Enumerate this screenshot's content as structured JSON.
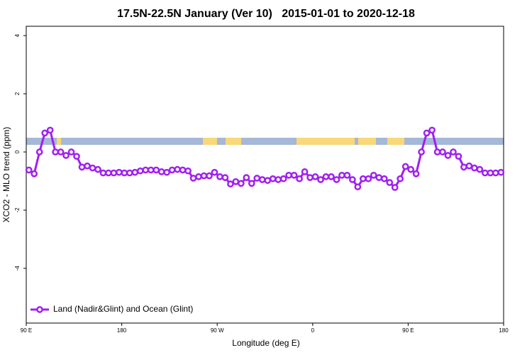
{
  "chart_data": {
    "type": "line",
    "title": "17.5N-22.5N January (Ver 10)   2015-01-01 to 2020-12-18",
    "x_label": "Longitude (deg E)",
    "y_label": "XCO2 - MLO trend (ppm)",
    "xlim": [
      90,
      540
    ],
    "ylim": [
      -5.88,
      4.32
    ],
    "xticks": [
      {
        "value": 90,
        "label": "90 E"
      },
      {
        "value": 180,
        "label": "180"
      },
      {
        "value": 270,
        "label": "90 W"
      },
      {
        "value": 360,
        "label": "0"
      },
      {
        "value": 450,
        "label": "90 E"
      },
      {
        "value": 540,
        "label": "180"
      }
    ],
    "yticks": [
      4,
      2,
      0,
      -2,
      -4
    ],
    "legend": "bottom-left",
    "x": [
      92.5,
      97.5,
      102.5,
      107.5,
      112.5,
      117.5,
      122.5,
      127.5,
      132.5,
      137.5,
      142.5,
      147.5,
      152.5,
      157.5,
      162.5,
      167.5,
      172.5,
      177.5,
      182.5,
      187.5,
      192.5,
      197.5,
      202.5,
      207.5,
      212.5,
      217.5,
      222.5,
      227.5,
      232.5,
      237.5,
      242.5,
      247.5,
      252.5,
      257.5,
      262.5,
      267.5,
      272.5,
      277.5,
      282.5,
      287.5,
      292.5,
      297.5,
      302.5,
      307.5,
      312.5,
      317.5,
      322.5,
      327.5,
      332.5,
      337.5,
      342.5,
      347.5,
      352.5,
      357.5,
      362.5,
      367.5,
      372.5,
      377.5,
      382.5,
      387.5,
      392.5,
      397.5,
      402.5,
      407.5,
      412.5,
      417.5,
      422.5,
      427.5,
      432.5,
      437.5,
      442.5,
      447.5,
      452.5,
      457.5,
      462.5,
      467.5,
      472.5,
      477.5,
      482.5,
      487.5,
      492.5,
      497.5,
      502.5,
      507.5,
      512.5,
      517.5,
      522.5,
      527.5,
      532.5,
      537.5
    ],
    "series": [
      {
        "name": "Land (Nadir&Glint) and Ocean (Glint)",
        "color": "#a020f0",
        "values": [
          -0.62,
          -0.75,
          0,
          0.65,
          0.75,
          0,
          0,
          -0.12,
          0,
          -0.15,
          -0.52,
          -0.48,
          -0.55,
          -0.6,
          -0.72,
          -0.72,
          -0.72,
          -0.7,
          -0.72,
          -0.72,
          -0.7,
          -0.65,
          -0.62,
          -0.62,
          -0.62,
          -0.68,
          -0.7,
          -0.62,
          -0.6,
          -0.62,
          -0.65,
          -0.9,
          -0.85,
          -0.82,
          -0.82,
          -0.7,
          -0.85,
          -0.88,
          -1.1,
          -1.02,
          -1.08,
          -0.88,
          -1.08,
          -0.9,
          -0.95,
          -0.98,
          -0.92,
          -0.95,
          -0.92,
          -0.8,
          -0.8,
          -0.92,
          -0.68,
          -0.88,
          -0.85,
          -0.95,
          -0.85,
          -0.85,
          -0.95,
          -0.8,
          -0.8,
          -0.95,
          -1.2,
          -0.92,
          -0.92,
          -0.8,
          -0.88,
          -0.92,
          -1.05,
          -1.22,
          -0.92,
          -0.5,
          -0.6,
          -0.75,
          0,
          0.65,
          0.75,
          0,
          0,
          -0.12,
          0,
          -0.15,
          -0.52,
          -0.48,
          -0.55,
          -0.6,
          -0.72,
          -0.72,
          -0.72,
          -0.7
        ]
      }
    ]
  }
}
